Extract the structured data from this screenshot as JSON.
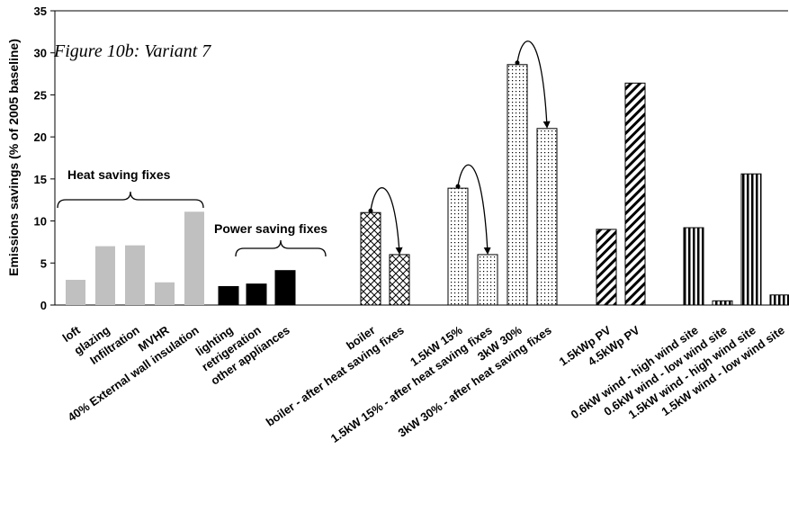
{
  "chart_data": {
    "type": "bar",
    "title": "Figure 10b: Variant 7",
    "ylabel": "Emissions savings (% of 2005 baseline)",
    "xlabel": "",
    "ylim": [
      0,
      35
    ],
    "yticks": [
      0,
      5,
      10,
      15,
      20,
      25,
      30,
      35
    ],
    "grid": false,
    "categories": [
      "loft",
      "glazing",
      "Infiltration",
      "MVHR",
      "40% External wall insulation",
      "lighting",
      "retrigeration",
      "other appliances",
      "boiler",
      "boiler - after heat saving fixes",
      "1.5kW 15%",
      "1.5kW 15% - after heat saving fixes",
      "3kW 30%",
      "3kW 30% - after heat saving fixes",
      "1.5kWp PV",
      "4.5kWp PV",
      "0.6kW wind - high wind site",
      "0.6kW wind - low wind site",
      "1.5kW wind - high wind site",
      "1.5kW wind - low wind site"
    ],
    "values": [
      3.0,
      7.0,
      7.1,
      2.7,
      11.1,
      2.2,
      2.5,
      4.1,
      11.0,
      6.0,
      13.9,
      6.0,
      28.6,
      21.0,
      9.0,
      26.4,
      9.2,
      0.5,
      15.6,
      1.2
    ],
    "groups": [
      {
        "name": "Heat saving fixes",
        "style": "solid-grey",
        "color": "#c0c0c0"
      },
      {
        "name": "Power saving fixes",
        "style": "solid-black",
        "color": "#000000"
      },
      {
        "name": "",
        "style": "crosshatch",
        "color": "#000000"
      },
      {
        "name": "",
        "style": "dots",
        "color": "#000000"
      },
      {
        "name": "",
        "style": "diagonal-stripes",
        "color": "#000000"
      },
      {
        "name": "",
        "style": "vertical-stripes",
        "color": "#000000"
      }
    ],
    "bar_groups": [
      0,
      0,
      0,
      0,
      0,
      1,
      1,
      1,
      2,
      2,
      3,
      3,
      3,
      3,
      4,
      4,
      5,
      5,
      5,
      5
    ],
    "annotations": [
      "Heat saving fixes",
      "Power saving fixes"
    ],
    "arrows": [
      [
        8,
        9
      ],
      [
        10,
        11
      ],
      [
        12,
        13
      ]
    ]
  }
}
